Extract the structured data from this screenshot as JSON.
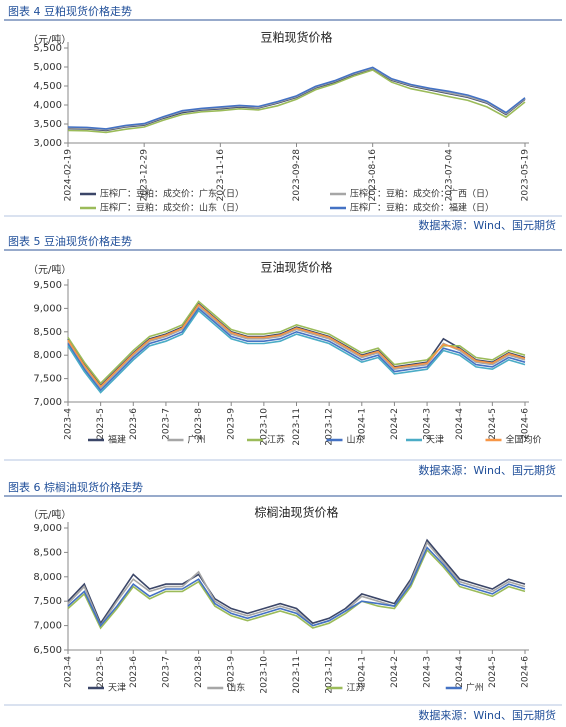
{
  "figures": [
    {
      "caption": "图表 4 豆粕现货价格走势",
      "source": "数据来源：Wind、国元期货"
    },
    {
      "caption": "图表 5 豆油现货价格走势",
      "source": "数据来源：Wind、国元期货"
    },
    {
      "caption": "图表 6 棕榈油现货价格走势",
      "source": "数据来源：Wind、国元期货"
    }
  ],
  "chart_data": [
    {
      "type": "line",
      "title": "豆粕现货价格",
      "unit": "（元/吨）",
      "categories": [
        "2024-02-19",
        null,
        null,
        null,
        "2023-12-29",
        null,
        null,
        null,
        "2023-11-16",
        null,
        null,
        null,
        "2023-09-28",
        null,
        null,
        null,
        "2023-08-16",
        null,
        null,
        null,
        "2023-07-04",
        null,
        null,
        null,
        "2023-05-19"
      ],
      "ylim": [
        3000,
        5500
      ],
      "yticks": [
        {
          "value": 3000,
          "label": "3,000"
        },
        {
          "value": 3500,
          "label": "3,500"
        },
        {
          "value": 4000,
          "label": "4,000"
        },
        {
          "value": 4500,
          "label": "4,500"
        },
        {
          "value": 5000,
          "label": "5,000"
        },
        {
          "value": 5500,
          "label": "5,500"
        }
      ],
      "series": [
        {
          "name": "压榨厂：豆粕：成交价：广东（日）",
          "color": "#3b4668",
          "values": [
            3380,
            3370,
            3330,
            3420,
            3470,
            3650,
            3800,
            3870,
            3900,
            3950,
            3920,
            4050,
            4200,
            4450,
            4600,
            4800,
            4950,
            4650,
            4500,
            4400,
            4300,
            4200,
            4050,
            3750,
            4150
          ]
        },
        {
          "name": "压榨厂：豆粕：成交价：广西（日）",
          "color": "#a6a6a6",
          "values": [
            3400,
            3390,
            3350,
            3440,
            3490,
            3670,
            3830,
            3890,
            3920,
            3970,
            3940,
            4070,
            4220,
            4470,
            4620,
            4820,
            4970,
            4670,
            4520,
            4420,
            4320,
            4220,
            4070,
            3770,
            4170
          ]
        },
        {
          "name": "压榨厂：豆粕：成交价：山东（日）",
          "color": "#9bbb59",
          "values": [
            3330,
            3320,
            3280,
            3360,
            3420,
            3600,
            3750,
            3820,
            3850,
            3900,
            3870,
            3980,
            4150,
            4400,
            4560,
            4760,
            4920,
            4600,
            4430,
            4330,
            4220,
            4120,
            3950,
            3680,
            4080
          ]
        },
        {
          "name": "压榨厂：豆粕：成交价：福建（日）",
          "color": "#4472c4",
          "values": [
            3420,
            3410,
            3370,
            3460,
            3510,
            3690,
            3850,
            3910,
            3950,
            3990,
            3960,
            4090,
            4240,
            4490,
            4640,
            4840,
            4990,
            4690,
            4540,
            4440,
            4360,
            4260,
            4100,
            3800,
            4190
          ]
        }
      ]
    },
    {
      "type": "line",
      "title": "豆油现货价格",
      "unit": "（元/吨）",
      "categories": [
        "2023-4",
        null,
        "2023-5",
        null,
        "2023-6",
        null,
        "2023-7",
        null,
        "2023-8",
        null,
        "2023-9",
        null,
        "2023-10",
        null,
        "2023-11",
        null,
        "2023-12",
        null,
        "2024-1",
        null,
        "2024-2",
        null,
        "2024-3",
        null,
        "2024-4",
        null,
        "2024-5",
        null,
        "2024-6"
      ],
      "ylim": [
        7000,
        9500
      ],
      "yticks": [
        {
          "value": 7000,
          "label": "7,000"
        },
        {
          "value": 7500,
          "label": "7,500"
        },
        {
          "value": 8000,
          "label": "8,000"
        },
        {
          "value": 8500,
          "label": "8,500"
        },
        {
          "value": 9000,
          "label": "9,000"
        },
        {
          "value": 9500,
          "label": "9,500"
        }
      ],
      "series": [
        {
          "name": "福建",
          "color": "#3b4668",
          "values": [
            8350,
            7800,
            7350,
            7700,
            8050,
            8350,
            8450,
            8600,
            9100,
            8800,
            8500,
            8400,
            8400,
            8450,
            8600,
            8500,
            8400,
            8200,
            8000,
            8100,
            7750,
            7800,
            7850,
            8350,
            8150,
            7900,
            7850,
            8050,
            7950
          ]
        },
        {
          "name": "广州",
          "color": "#a6a6a6",
          "values": [
            8300,
            7750,
            7300,
            7650,
            8000,
            8300,
            8400,
            8550,
            9050,
            8750,
            8450,
            8350,
            8350,
            8400,
            8550,
            8450,
            8350,
            8150,
            7950,
            8050,
            7700,
            7750,
            7800,
            8250,
            8100,
            7850,
            7800,
            8000,
            7900
          ]
        },
        {
          "name": "江苏",
          "color": "#9bbb59",
          "values": [
            8380,
            7850,
            7400,
            7750,
            8100,
            8400,
            8500,
            8650,
            9150,
            8850,
            8550,
            8450,
            8450,
            8500,
            8650,
            8550,
            8450,
            8250,
            8050,
            8150,
            7800,
            7850,
            7900,
            8200,
            8200,
            7950,
            7900,
            8100,
            8000
          ]
        },
        {
          "name": "山东",
          "color": "#4472c4",
          "values": [
            8250,
            7700,
            7250,
            7600,
            7950,
            8250,
            8350,
            8500,
            9000,
            8700,
            8400,
            8300,
            8300,
            8350,
            8500,
            8400,
            8300,
            8100,
            7900,
            8000,
            7650,
            7700,
            7750,
            8150,
            8050,
            7800,
            7750,
            7950,
            7850
          ]
        },
        {
          "name": "天津",
          "color": "#4bacc6",
          "values": [
            8200,
            7650,
            7200,
            7550,
            7900,
            8200,
            8300,
            8450,
            8950,
            8650,
            8350,
            8250,
            8250,
            8300,
            8450,
            8350,
            8250,
            8050,
            7850,
            7950,
            7600,
            7650,
            7700,
            8100,
            8000,
            7750,
            7700,
            7900,
            7800
          ]
        },
        {
          "name": "全国均价",
          "color": "#f79646",
          "values": [
            8320,
            7780,
            7330,
            7680,
            8030,
            8330,
            8430,
            8580,
            9080,
            8780,
            8480,
            8380,
            8380,
            8430,
            8580,
            8480,
            8380,
            8180,
            7980,
            8080,
            7730,
            7780,
            7830,
            8230,
            8130,
            7880,
            7830,
            8030,
            7930
          ]
        }
      ]
    },
    {
      "type": "line",
      "title": "棕榈油现货价格",
      "unit": "（元/吨）",
      "categories": [
        "2023-4",
        null,
        "2023-5",
        null,
        "2023-6",
        null,
        "2023-7",
        null,
        "2023-8",
        null,
        "2023-9",
        null,
        "2023-10",
        null,
        "2023-11",
        null,
        "2023-12",
        null,
        "2024-1",
        null,
        "2024-2",
        null,
        "2024-3",
        null,
        "2024-4",
        null,
        "2024-5",
        null,
        "2024-6"
      ],
      "ylim": [
        6500,
        9000
      ],
      "yticks": [
        {
          "value": 6500,
          "label": "6,500"
        },
        {
          "value": 7000,
          "label": "7,000"
        },
        {
          "value": 7500,
          "label": "7,500"
        },
        {
          "value": 8000,
          "label": "8,000"
        },
        {
          "value": 8500,
          "label": "8,500"
        },
        {
          "value": 9000,
          "label": "9,000"
        }
      ],
      "series": [
        {
          "name": "天津",
          "color": "#3b4668",
          "values": [
            7500,
            7850,
            7050,
            7550,
            8050,
            7750,
            7850,
            7850,
            8050,
            7550,
            7350,
            7250,
            7350,
            7450,
            7350,
            7050,
            7150,
            7350,
            7650,
            7550,
            7450,
            7950,
            8750,
            8350,
            7950,
            7850,
            7750,
            7950,
            7850
          ]
        },
        {
          "name": "山东",
          "color": "#a6a6a6",
          "values": [
            7450,
            7800,
            7000,
            7500,
            7950,
            7700,
            7800,
            7800,
            8100,
            7500,
            7300,
            7200,
            7300,
            7400,
            7300,
            7000,
            7100,
            7300,
            7600,
            7500,
            7400,
            7900,
            8700,
            8300,
            7900,
            7800,
            7700,
            7900,
            7800
          ]
        },
        {
          "name": "江苏",
          "color": "#9bbb59",
          "values": [
            7350,
            7650,
            6950,
            7350,
            7800,
            7550,
            7700,
            7700,
            7900,
            7400,
            7200,
            7100,
            7200,
            7300,
            7200,
            6950,
            7050,
            7250,
            7500,
            7400,
            7350,
            7800,
            8550,
            8200,
            7800,
            7700,
            7600,
            7800,
            7700
          ]
        },
        {
          "name": "广州",
          "color": "#4472c4",
          "values": [
            7400,
            7700,
            7000,
            7400,
            7850,
            7600,
            7750,
            7750,
            7950,
            7450,
            7250,
            7150,
            7250,
            7350,
            7250,
            7000,
            7100,
            7300,
            7500,
            7450,
            7400,
            7850,
            8600,
            8250,
            7850,
            7750,
            7650,
            7850,
            7750
          ]
        }
      ]
    }
  ]
}
